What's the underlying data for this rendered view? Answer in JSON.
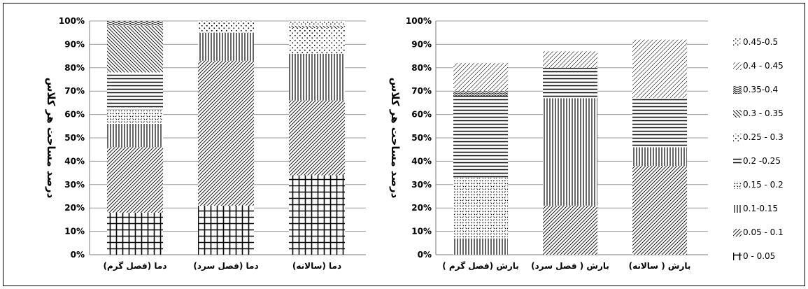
{
  "chart_data": {
    "legend": {
      "placement": "right",
      "entries": [
        "0.45-0.5",
        "0.4 - 0.45",
        "0.35-0.4",
        "0.3 - 0.35",
        "0.25 - 0.3",
        "0.2 -0.25",
        "0.15 - 0.2",
        "0.1-0.15",
        "0.05 - 0.1",
        "0 - 0.05"
      ]
    },
    "charts": [
      {
        "type": "bar",
        "stacked": true,
        "percent": true,
        "ylabel": "درصد مساحت هر کلاس",
        "yticks": [
          "0%",
          "10%",
          "20%",
          "30%",
          "40%",
          "50%",
          "60%",
          "70%",
          "80%",
          "90%",
          "100%"
        ],
        "ylim": [
          0,
          100
        ],
        "grid": true,
        "categories": [
          "دما (فصل گرم)",
          "دما (فصل سرد)",
          "دما (سالانه)"
        ],
        "series": [
          {
            "name": "0 - 0.05",
            "values": [
              18,
              21,
              34
            ]
          },
          {
            "name": "0.05 - 0.1",
            "values": [
              28,
              62,
              32
            ]
          },
          {
            "name": "0.1-0.15",
            "values": [
              10,
              12,
              20
            ]
          },
          {
            "name": "0.15 - 0.2",
            "values": [
              6,
              0,
              0
            ]
          },
          {
            "name": "0.2 -0.25",
            "values": [
              16,
              0,
              0
            ]
          },
          {
            "name": "0.25 - 0.3",
            "values": [
              0,
              5,
              11
            ]
          },
          {
            "name": "0.3 - 0.35",
            "values": [
              20,
              0,
              1
            ]
          },
          {
            "name": "0.35-0.4",
            "values": [
              2,
              0,
              0
            ]
          },
          {
            "name": "0.4 - 0.45",
            "values": [
              0,
              0,
              0
            ]
          },
          {
            "name": "0.45-0.5",
            "values": [
              0,
              0,
              2
            ]
          }
        ]
      },
      {
        "type": "bar",
        "stacked": true,
        "percent": true,
        "ylabel": "درصد مساحت هر کلاس",
        "yticks": [
          "0%",
          "10%",
          "20%",
          "30%",
          "40%",
          "50%",
          "60%",
          "70%",
          "80%",
          "90%",
          "100%"
        ],
        "ylim": [
          0,
          100
        ],
        "grid": true,
        "categories": [
          "بارش (فصل گرم )",
          "بارش ( فصل سرد)",
          "بارش ( سالانه)"
        ],
        "series": [
          {
            "name": "0 - 0.05",
            "values": [
              0,
              0,
              0
            ]
          },
          {
            "name": "0.05 - 0.1",
            "values": [
              0,
              21,
              38
            ]
          },
          {
            "name": "0.1-0.15",
            "values": [
              7,
              46,
              8
            ]
          },
          {
            "name": "0.15 - 0.2",
            "values": [
              26,
              0,
              0
            ]
          },
          {
            "name": "0.2 -0.25",
            "values": [
              35,
              13,
              21
            ]
          },
          {
            "name": "0.25 - 0.3",
            "values": [
              0,
              0,
              0
            ]
          },
          {
            "name": "0.3 - 0.35",
            "values": [
              0,
              0,
              0
            ]
          },
          {
            "name": "0.35-0.4",
            "values": [
              2,
              0,
              0
            ]
          },
          {
            "name": "0.4 - 0.45",
            "values": [
              12,
              7,
              25
            ]
          },
          {
            "name": "0.45-0.5",
            "values": [
              0,
              0,
              0
            ]
          }
        ]
      }
    ]
  }
}
